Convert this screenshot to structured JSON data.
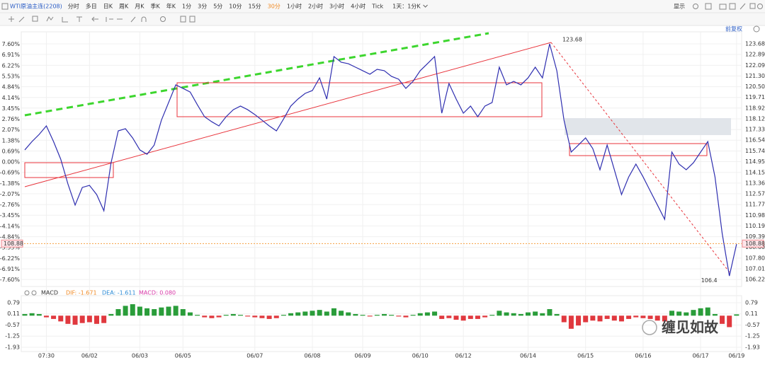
{
  "toolbar": {
    "symbol": "WTI原油主连(2208)",
    "periods": [
      "分时",
      "多日",
      "日K",
      "周K",
      "月K",
      "季K",
      "年K",
      "1分",
      "3分",
      "5分",
      "10分",
      "15分",
      "30分",
      "1小时",
      "2小时",
      "3小时",
      "4小时",
      "Tick"
    ],
    "active_period": "30分",
    "range_select": "1天：1分K",
    "display": "显示",
    "adjust": "前复权"
  },
  "chart_data": {
    "type": "line",
    "color": "#2f2fb0",
    "categories": [
      null,
      null,
      null,
      "07:30",
      null,
      null,
      null,
      null,
      null,
      "06/02",
      null,
      null,
      null,
      null,
      null,
      null,
      "06/03",
      null,
      null,
      null,
      null,
      null,
      "06/05",
      null,
      null,
      null,
      null,
      null,
      null,
      null,
      null,
      null,
      "06/07",
      null,
      null,
      null,
      null,
      null,
      null,
      null,
      "06/08",
      null,
      null,
      null,
      null,
      null,
      null,
      "06/09",
      null,
      null,
      null,
      null,
      null,
      null,
      null,
      "06/10",
      null,
      null,
      null,
      null,
      null,
      "06/12",
      null,
      null,
      null,
      null,
      null,
      null,
      null,
      null,
      "06/14",
      null,
      null,
      null,
      null,
      null,
      null,
      null,
      "06/15",
      null,
      null,
      null,
      null,
      null,
      null,
      null,
      "06/16",
      null,
      null,
      null,
      null,
      null,
      null,
      null,
      "06/17",
      null,
      null,
      null,
      null,
      "06/19"
    ],
    "values": [
      115.82,
      116.44,
      116.97,
      117.6,
      116.44,
      115.13,
      113.3,
      111.73,
      113.04,
      113.19,
      112.51,
      111.31,
      114.87,
      117.23,
      117.39,
      116.71,
      115.82,
      115.5,
      116.18,
      118.02,
      119.33,
      120.64,
      120.38,
      120.11,
      119.17,
      118.28,
      117.91,
      117.6,
      118.28,
      118.8,
      119.07,
      118.8,
      118.44,
      118.02,
      117.6,
      117.23,
      118.12,
      119.07,
      119.59,
      120.01,
      120.22,
      121.16,
      119.59,
      122.74,
      122.32,
      122.21,
      121.95,
      121.69,
      121.43,
      121.79,
      121.69,
      121.27,
      121.06,
      120.38,
      120.9,
      121.69,
      122.21,
      122.74,
      118.54,
      120.74,
      119.59,
      118.54,
      119.07,
      118.28,
      119.07,
      119.33,
      121.95,
      120.64,
      120.9,
      120.64,
      121.16,
      121.95,
      121.16,
      123.68,
      121.69,
      118.02,
      115.66,
      116.18,
      116.71,
      115.92,
      114.35,
      116.18,
      114.35,
      112.51,
      113.82,
      114.77,
      113.82,
      112.77,
      111.73,
      110.68,
      115.66,
      114.77,
      114.35,
      114.87,
      115.66,
      116.44,
      113.82,
      109.63,
      106.48,
      108.84
    ],
    "ylim": [
      105.7,
      124.57
    ],
    "yticks": [
      123.68,
      122.89,
      122.09,
      {
        "value": 121.3,
        "label": "121.30"
      },
      {
        "value": 120.5,
        "label": "120.50"
      },
      119.71,
      118.92,
      118.12,
      117.33,
      116.54,
      115.74,
      114.95,
      114.15,
      113.36,
      112.57,
      111.77,
      110.98,
      110.19,
      109.39,
      {
        "value": 108.6,
        "label": "108.60"
      },
      {
        "value": 107.8,
        "label": "107.80"
      },
      107.01,
      106.22
    ],
    "y2lim": [
      -8.03,
      8.4
    ],
    "y2ticks": [
      {
        "value": 7.6,
        "label": "7.60%"
      },
      {
        "value": 6.91,
        "label": "6.91%"
      },
      {
        "value": 6.22,
        "label": "6.22%"
      },
      {
        "value": 5.53,
        "label": "5.53%"
      },
      {
        "value": 4.84,
        "label": "4.84%"
      },
      {
        "value": 4.14,
        "label": "4.14%"
      },
      {
        "value": 3.45,
        "label": "3.45%"
      },
      {
        "value": 2.76,
        "label": "2.76%"
      },
      {
        "value": 2.07,
        "label": "2.07%"
      },
      {
        "value": 1.38,
        "label": "1.38%"
      },
      {
        "value": 0.69,
        "label": "0.69%"
      },
      {
        "value": 0,
        "label": "0.00%"
      },
      {
        "value": -0.69,
        "label": "-0.69%"
      },
      {
        "value": -1.38,
        "label": "-1.38%"
      },
      {
        "value": -2.07,
        "label": "-2.07%"
      },
      {
        "value": -2.76,
        "label": "-2.76%"
      },
      {
        "value": -3.45,
        "label": "-3.45%"
      },
      {
        "value": -4.14,
        "label": "-4.14%"
      },
      {
        "value": -4.84,
        "label": "-4.84%"
      },
      {
        "value": -5.53,
        "label": "-5.53%"
      },
      {
        "value": -6.22,
        "label": "-6.22%"
      },
      {
        "value": -6.91,
        "label": "-6.91%"
      },
      {
        "value": -7.6,
        "label": "-7.60%"
      }
    ],
    "last_price": 108.88,
    "high_label": 123.68,
    "low_label": 106.4,
    "grid": true,
    "macd": {
      "title": "MACD",
      "dif_label": "DIF: -1.671",
      "dea_label": "DEA: -1.611",
      "macd_label": "MACD: 0.080",
      "ylim": [
        -2.19,
        1.22
      ],
      "yticks": [
        0.79,
        0.11,
        -0.57,
        -1.25,
        -1.93
      ],
      "up_color": "#2a9d3a",
      "down_color": "#e0383e",
      "values": [
        0.1,
        0.15,
        0.1,
        -0.1,
        -0.2,
        -0.35,
        -0.5,
        -0.55,
        -0.45,
        -0.4,
        -0.5,
        -0.45,
        0.1,
        0.4,
        0.6,
        0.7,
        0.55,
        0.45,
        0.4,
        0.5,
        0.55,
        0.6,
        0.4,
        0.2,
        0.05,
        -0.1,
        -0.15,
        -0.1,
        0.05,
        0.1,
        0.05,
        -0.05,
        -0.1,
        -0.15,
        -0.2,
        -0.15,
        0.05,
        0.15,
        0.2,
        0.25,
        0.3,
        0.35,
        0.25,
        0.45,
        0.3,
        0.2,
        0.1,
        0.05,
        -0.05,
        0.05,
        0.1,
        0.05,
        -0.05,
        -0.1,
        0.05,
        0.15,
        0.2,
        0.25,
        -0.2,
        -0.15,
        -0.25,
        -0.3,
        -0.2,
        -0.2,
        -0.1,
        0.05,
        0.3,
        0.2,
        0.15,
        0.1,
        0.2,
        0.25,
        0.15,
        0.4,
        0.1,
        -0.4,
        -0.8,
        -0.6,
        -0.4,
        -0.3,
        -0.35,
        -0.2,
        -0.3,
        -0.35,
        -0.2,
        -0.1,
        -0.15,
        -0.2,
        -0.3,
        -0.35,
        0.3,
        0.25,
        0.2,
        0.35,
        0.45,
        0.5,
        0.1,
        -0.5,
        -0.7,
        0.08
      ]
    }
  },
  "watermark": "缠见如故"
}
